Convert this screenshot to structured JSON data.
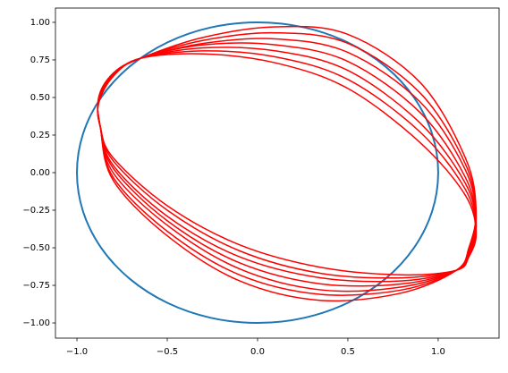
{
  "chart_data": {
    "type": "line",
    "xlim": [
      -1.119,
      1.337
    ],
    "ylim": [
      -1.101,
      1.095
    ],
    "xticks": [
      {
        "value": -1.0,
        "label": "−1.0"
      },
      {
        "value": -0.5,
        "label": "−0.5"
      },
      {
        "value": 0.0,
        "label": "0.0"
      },
      {
        "value": 0.5,
        "label": "0.5"
      },
      {
        "value": 1.0,
        "label": "1.0"
      }
    ],
    "yticks": [
      {
        "value": 1.0,
        "label": "1.00"
      },
      {
        "value": 0.75,
        "label": "0.75"
      },
      {
        "value": 0.5,
        "label": "0.50"
      },
      {
        "value": 0.25,
        "label": "0.25"
      },
      {
        "value": 0.0,
        "label": "0.00"
      },
      {
        "value": -0.25,
        "label": "−0.25"
      },
      {
        "value": -0.5,
        "label": "−0.50"
      },
      {
        "value": -0.75,
        "label": "−0.75"
      },
      {
        "value": -1.0,
        "label": "−1.00"
      }
    ],
    "grid": false,
    "series": [
      {
        "color": "#1f77b4",
        "width": 2,
        "x": [
          1,
          0.966,
          0.866,
          0.707,
          0.5,
          0.259,
          0,
          -0.259,
          -0.5,
          -0.707,
          -0.866,
          -0.966,
          -1,
          -0.966,
          -0.866,
          -0.707,
          -0.5,
          -0.259,
          0,
          0.259,
          0.5,
          0.707,
          0.866,
          0.966,
          1
        ],
        "values": [
          0,
          0.259,
          0.5,
          0.707,
          0.866,
          0.966,
          1,
          0.966,
          0.866,
          0.707,
          0.5,
          0.259,
          0,
          -0.259,
          -0.5,
          -0.707,
          -0.866,
          -0.966,
          -1,
          -0.966,
          -0.866,
          -0.707,
          -0.5,
          -0.259,
          0
        ]
      },
      {
        "color": "red",
        "width": 1.5,
        "x": [
          -0.87,
          -0.88,
          -0.8,
          -0.65,
          -0.3,
          0.1,
          0.5,
          0.9,
          1.15,
          1.21,
          1.17,
          1.1,
          0.8,
          0.35,
          -0.1,
          -0.5,
          -0.8,
          -0.87
        ],
        "values": [
          0.3,
          0.5,
          0.66,
          0.76,
          0.9,
          0.97,
          0.92,
          0.6,
          0.1,
          -0.25,
          -0.5,
          -0.65,
          -0.8,
          -0.85,
          -0.72,
          -0.42,
          -0.05,
          0.3
        ]
      },
      {
        "color": "red",
        "width": 1.5,
        "x": [
          -0.87,
          -0.88,
          -0.8,
          -0.65,
          -0.3,
          0.1,
          0.5,
          0.9,
          1.15,
          1.21,
          1.17,
          1.1,
          0.8,
          0.35,
          -0.1,
          -0.5,
          -0.8,
          -0.87
        ],
        "values": [
          0.3,
          0.49,
          0.66,
          0.76,
          0.88,
          0.93,
          0.86,
          0.53,
          0.06,
          -0.28,
          -0.51,
          -0.65,
          -0.78,
          -0.81,
          -0.68,
          -0.39,
          -0.03,
          0.3
        ]
      },
      {
        "color": "red",
        "width": 1.5,
        "x": [
          -0.87,
          -0.88,
          -0.8,
          -0.65,
          -0.3,
          0.1,
          0.5,
          0.9,
          1.15,
          1.21,
          1.17,
          1.1,
          0.8,
          0.35,
          -0.1,
          -0.5,
          -0.8,
          -0.87
        ],
        "values": [
          0.3,
          0.49,
          0.65,
          0.76,
          0.86,
          0.89,
          0.8,
          0.47,
          0.02,
          -0.3,
          -0.52,
          -0.65,
          -0.76,
          -0.78,
          -0.64,
          -0.35,
          0.0,
          0.3
        ]
      },
      {
        "color": "red",
        "width": 1.5,
        "x": [
          -0.87,
          -0.88,
          -0.8,
          -0.65,
          -0.3,
          0.1,
          0.5,
          0.9,
          1.15,
          1.21,
          1.17,
          1.1,
          0.8,
          0.35,
          -0.1,
          -0.5,
          -0.8,
          -0.87
        ],
        "values": [
          0.3,
          0.48,
          0.65,
          0.76,
          0.85,
          0.85,
          0.74,
          0.4,
          -0.03,
          -0.33,
          -0.53,
          -0.65,
          -0.74,
          -0.74,
          -0.6,
          -0.32,
          0.03,
          0.3
        ]
      },
      {
        "color": "red",
        "width": 1.5,
        "x": [
          -0.87,
          -0.88,
          -0.8,
          -0.65,
          -0.3,
          0.1,
          0.5,
          0.9,
          1.15,
          1.21,
          1.17,
          1.1,
          0.8,
          0.35,
          -0.1,
          -0.5,
          -0.8,
          -0.87
        ],
        "values": [
          0.3,
          0.47,
          0.65,
          0.76,
          0.83,
          0.81,
          0.68,
          0.33,
          -0.07,
          -0.35,
          -0.54,
          -0.65,
          -0.72,
          -0.7,
          -0.56,
          -0.29,
          0.05,
          0.3
        ]
      },
      {
        "color": "red",
        "width": 1.5,
        "x": [
          -0.87,
          -0.88,
          -0.8,
          -0.65,
          -0.3,
          0.1,
          0.5,
          0.9,
          1.15,
          1.21,
          1.17,
          1.1,
          0.8,
          0.35,
          -0.1,
          -0.5,
          -0.8,
          -0.87
        ],
        "values": [
          0.3,
          0.47,
          0.64,
          0.76,
          0.81,
          0.77,
          0.62,
          0.27,
          -0.11,
          -0.38,
          -0.55,
          -0.65,
          -0.7,
          -0.67,
          -0.52,
          -0.25,
          0.08,
          0.3
        ]
      },
      {
        "color": "red",
        "width": 1.5,
        "x": [
          -0.87,
          -0.88,
          -0.8,
          -0.65,
          -0.3,
          0.1,
          0.5,
          0.9,
          1.15,
          1.21,
          1.17,
          1.1,
          0.8,
          0.35,
          -0.1,
          -0.5,
          -0.8,
          -0.87
        ],
        "values": [
          0.3,
          0.46,
          0.64,
          0.76,
          0.79,
          0.73,
          0.56,
          0.2,
          -0.15,
          -0.4,
          -0.56,
          -0.65,
          -0.68,
          -0.63,
          -0.48,
          -0.22,
          0.1,
          0.3
        ]
      }
    ]
  }
}
